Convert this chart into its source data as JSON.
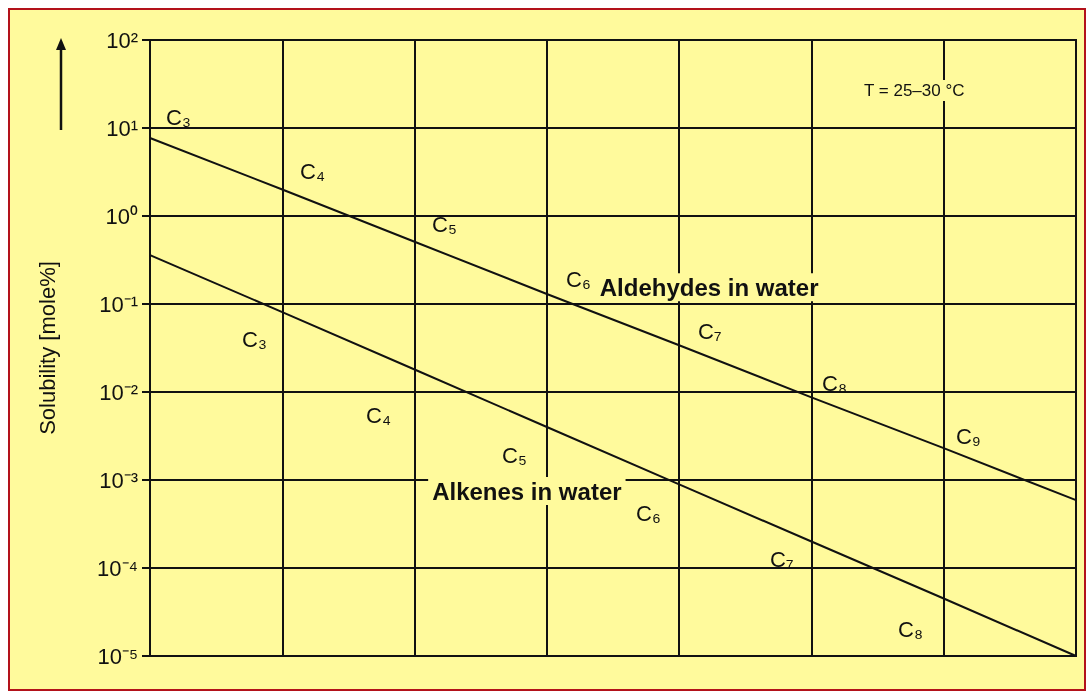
{
  "chart_data": {
    "type": "line",
    "ylabel": "Solubility [mole%]",
    "categories": [
      null,
      null,
      null,
      null,
      null,
      null,
      null,
      null
    ],
    "series": [
      {
        "name": "Aldehydes in water",
        "color": "#111111",
        "values": [
          7.7,
          2.0,
          0.51,
          0.13,
          0.034,
          0.0087,
          0.0023,
          0.00059
        ]
      },
      {
        "name": "Alkenes in water",
        "color": "#111111",
        "values": [
          0.36,
          0.081,
          0.018,
          0.004,
          0.00089,
          0.0002,
          4.5e-05,
          1e-05
        ]
      }
    ],
    "log": "y",
    "ylim": [
      1e-05,
      100
    ],
    "yticks": [
      {
        "value": 1e-05,
        "label": "10⁻⁵"
      },
      {
        "value": 0.0001,
        "label": "10⁻⁴"
      },
      {
        "value": 0.001,
        "label": "10⁻³"
      },
      {
        "value": 0.01,
        "label": "10⁻²"
      },
      {
        "value": 0.1,
        "label": "10⁻¹"
      },
      {
        "value": 1,
        "label": "10⁰"
      },
      {
        "value": 10,
        "label": "10¹"
      },
      {
        "value": 100,
        "label": "10²"
      }
    ],
    "grid": true,
    "marker": "none",
    "line_style": "solid",
    "annotations": [
      "T = 25–30 °C",
      "C₃",
      "C₄",
      "C₅",
      "C₆",
      "C₇",
      "C₈",
      "C₉",
      "C₃",
      "C₄",
      "C₅",
      "C₆",
      "C₇",
      "C₈"
    ]
  }
}
